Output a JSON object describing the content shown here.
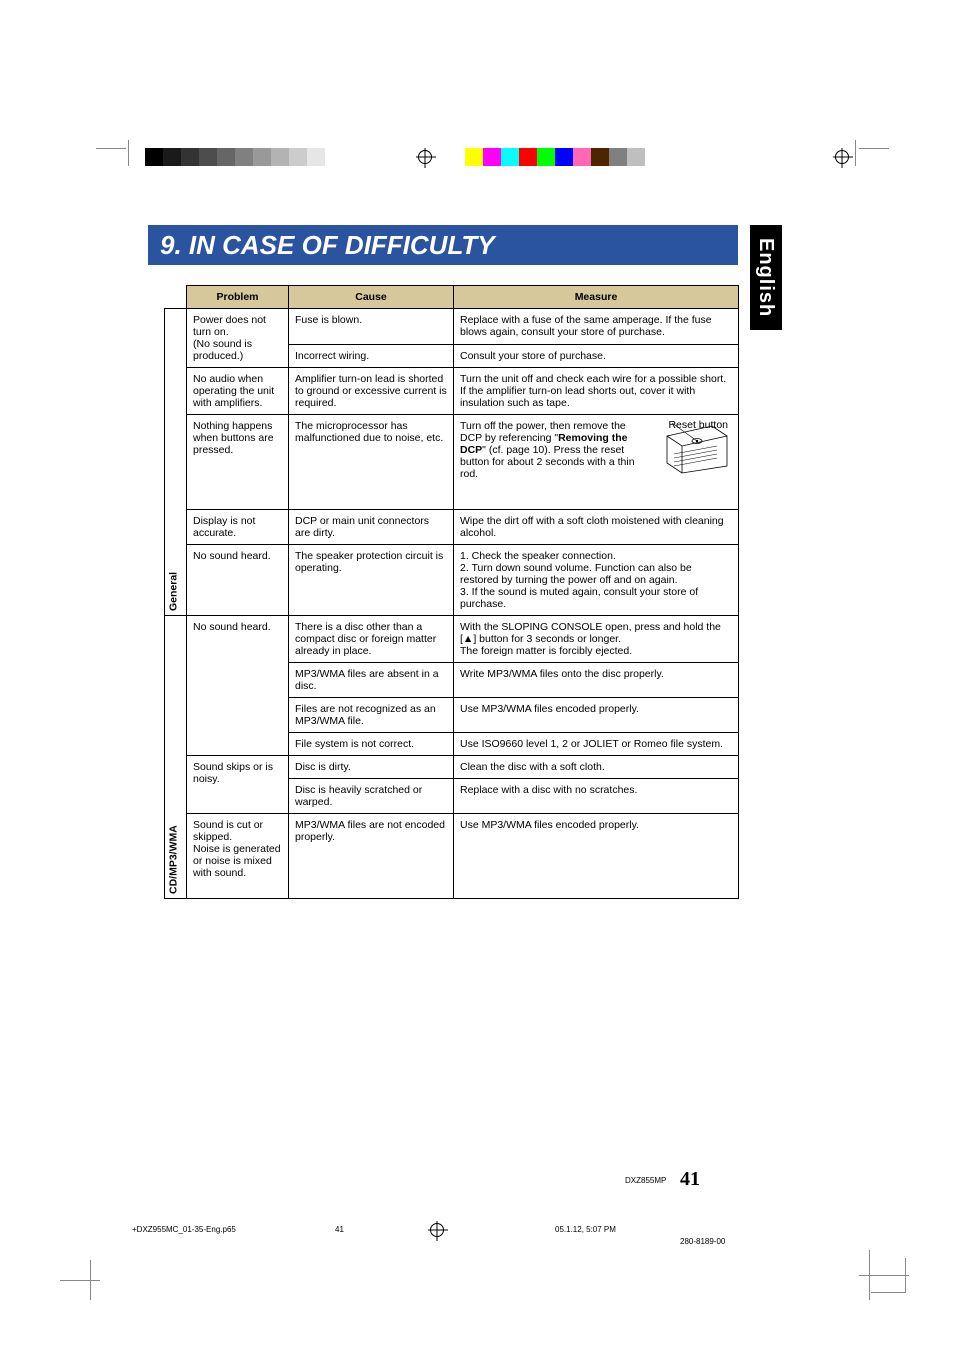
{
  "colorbar_left": [
    "#000000",
    "#1a1a1a",
    "#333333",
    "#4d4d4d",
    "#666666",
    "#808080",
    "#999999",
    "#b3b3b3",
    "#cccccc",
    "#e6e6e6",
    "#ffffff"
  ],
  "colorbar_right": [
    "#ffff00",
    "#ff00ff",
    "#00ffff",
    "#ff0000",
    "#00ff00",
    "#0000ff",
    "#ff66b3",
    "#4d2600",
    "#808080",
    "#bfbfbf",
    "#ffffff"
  ],
  "title": "9. IN CASE OF DIFFICULTY",
  "language_tab": "English",
  "headers": {
    "problem": "Problem",
    "cause": "Cause",
    "measure": "Measure"
  },
  "categories": {
    "general": "General",
    "cd": "CD/MP3/WMA"
  },
  "reset_label": "Reset button",
  "rows_general": [
    {
      "problem": "Power does not turn on.\n(No sound is produced.)",
      "entries": [
        {
          "cause": "Fuse is blown.",
          "measure": "Replace with a fuse of the same amperage. If the fuse blows again, consult your store of purchase."
        },
        {
          "cause": "Incorrect wiring.",
          "measure": "Consult your store of purchase."
        }
      ]
    },
    {
      "problem": "No audio when operating the unit with amplifiers.",
      "entries": [
        {
          "cause": "Amplifier turn-on lead is shorted to ground or excessive current is required.",
          "measure": "Turn the unit off and check each wire for a possible short. If the amplifier turn-on lead shorts out, cover it with insulation such as tape."
        }
      ]
    },
    {
      "problem": "Nothing happens when buttons are pressed.",
      "entries": [
        {
          "cause": "The microprocessor has malfunctioned due to noise, etc.",
          "measure_html": true,
          "measure": "Turn off the power, then remove the DCP by referencing \"<b>Removing the DCP</b>\" (cf. page 10). Press the reset button for about 2 seconds with a thin rod."
        }
      ]
    },
    {
      "problem": "Display is not accurate.",
      "entries": [
        {
          "cause": "DCP or main unit connectors are dirty.",
          "measure": "Wipe the dirt off with a soft cloth moistened with cleaning alcohol."
        }
      ]
    },
    {
      "problem": "No sound heard.",
      "entries": [
        {
          "cause": "The speaker protection circuit is operating.",
          "measure": "1. Check the speaker connection.\n2. Turn down sound volume. Function can also be restored by turning the power off and on again.\n3. If the sound is muted again, consult your store of purchase."
        }
      ]
    }
  ],
  "rows_cd": [
    {
      "problem": "No sound heard.",
      "entries": [
        {
          "cause": "There is a disc other than a compact disc or foreign matter already in place.",
          "measure_html": true,
          "measure": "With the SLOPING CONSOLE open, press and hold the [<span class='eject'>▲</span>] button for 3 seconds or longer.<br>The foreign matter is forcibly ejected."
        },
        {
          "cause": "MP3/WMA files are absent in a disc.",
          "measure": "Write MP3/WMA files onto the disc properly."
        },
        {
          "cause": "Files are not recognized as an MP3/WMA file.",
          "measure": "Use MP3/WMA files encoded properly."
        },
        {
          "cause": "File system is not correct.",
          "measure": "Use ISO9660 level 1, 2 or JOLIET or Romeo file system."
        }
      ]
    },
    {
      "problem": "Sound skips or is noisy.",
      "entries": [
        {
          "cause": "Disc is dirty.",
          "measure": "Clean the disc with a soft cloth."
        },
        {
          "cause": "Disc is heavily scratched or warped.",
          "measure": "Replace with a disc with no scratches."
        }
      ]
    },
    {
      "problem": "Sound is cut or skipped.\nNoise is generated or noise is mixed with sound.",
      "entries": [
        {
          "cause": "MP3/WMA files are not encoded properly.",
          "measure": "Use MP3/WMA files encoded properly."
        }
      ]
    }
  ],
  "footer": {
    "page_num": "41",
    "model": "DXZ855MP",
    "file": "+DXZ955MC_01-35-Eng.p65",
    "pg": "41",
    "date": "05.1.12, 5:07 PM",
    "code": "280-8189-00"
  },
  "style": {
    "title_bg": "#2a53a0",
    "title_fg": "#ffffff",
    "header_bg": "#d6c89a",
    "border": "#000000",
    "tab_bg": "#000000",
    "tab_fg": "#ffffff",
    "body_font_size": 10.5
  }
}
